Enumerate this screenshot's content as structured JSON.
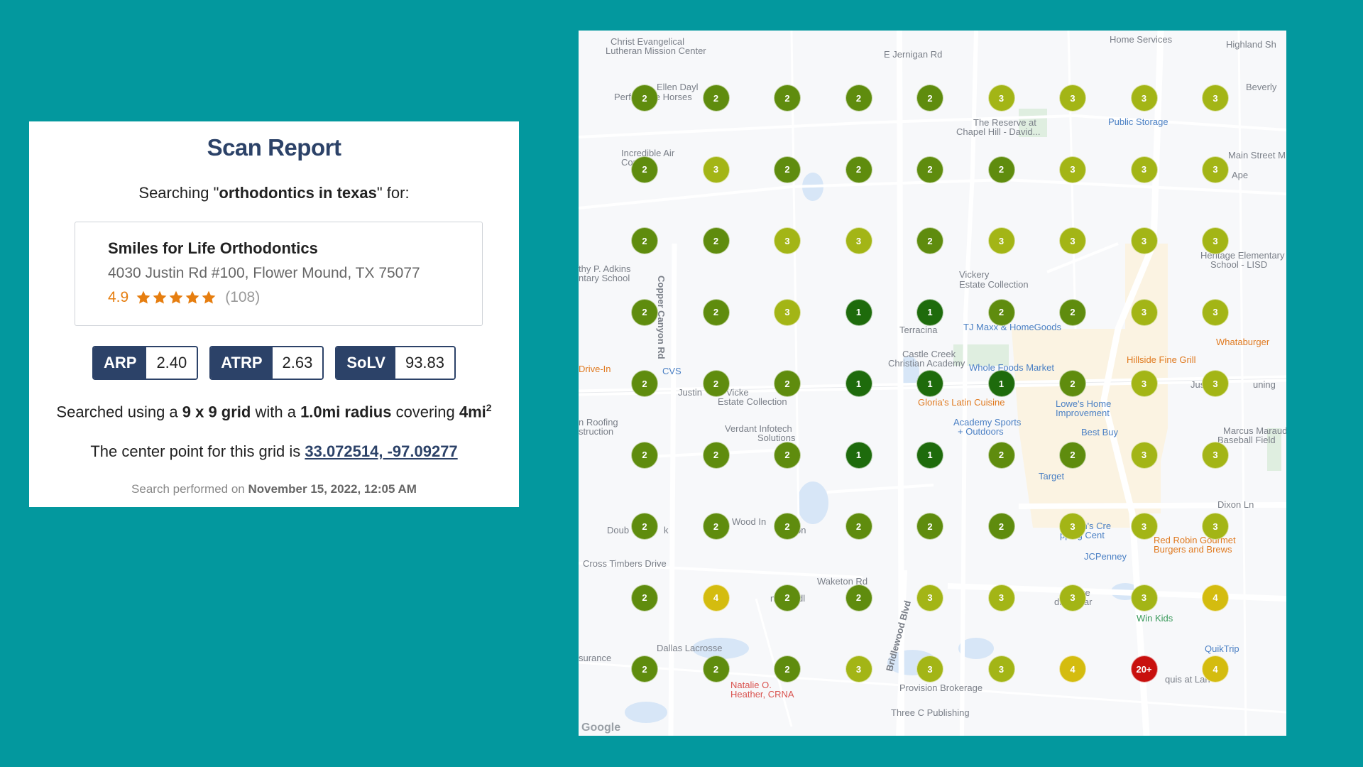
{
  "report": {
    "title": "Scan Report",
    "searching_prefix": "Searching \"",
    "query": "orthodontics in texas",
    "searching_suffix": "\" for:",
    "business": {
      "name": "Smiles for Life Orthodontics",
      "address": "4030 Justin Rd #100, Flower Mound, TX 75077",
      "rating": "4.9",
      "stars": 5,
      "review_count": "(108)"
    },
    "metrics": [
      {
        "label": "ARP",
        "value": "2.40"
      },
      {
        "label": "ATRP",
        "value": "2.63"
      },
      {
        "label": "SoLV",
        "value": "93.83"
      }
    ],
    "grid_text": {
      "p1": "Searched using a ",
      "grid": "9 x 9 grid",
      "p2": " with a ",
      "radius": "1.0mi radius",
      "p3": " covering ",
      "area": "4mi",
      "area_sup": "2"
    },
    "center_text": {
      "prefix": "The center point for this grid is ",
      "coords": "33.072514, -97.09277"
    },
    "performed": {
      "prefix": "Search performed on ",
      "date": "November 15, 2022, 12:05 AM"
    }
  },
  "map": {
    "rank_colors": {
      "1": "#1e6b0c",
      "2": "#5f8c0e",
      "3": "#a3b516",
      "4": "#d4bc0f",
      "20+": "#c8100e"
    },
    "grid": [
      [
        "2",
        "2",
        "2",
        "2",
        "2",
        "3",
        "3",
        "3",
        "3"
      ],
      [
        "2",
        "3",
        "2",
        "2",
        "2",
        "2",
        "3",
        "3",
        "3"
      ],
      [
        "2",
        "2",
        "3",
        "3",
        "2",
        "3",
        "3",
        "3",
        "3"
      ],
      [
        "2",
        "2",
        "3",
        "1",
        "1",
        "2",
        "2",
        "3",
        "3"
      ],
      [
        "2",
        "2",
        "2",
        "1",
        "1",
        "1",
        "2",
        "3",
        "3"
      ],
      [
        "2",
        "2",
        "2",
        "1",
        "1",
        "2",
        "2",
        "3",
        "3"
      ],
      [
        "2",
        "2",
        "2",
        "2",
        "2",
        "2",
        "3",
        "3",
        "3"
      ],
      [
        "2",
        "4",
        "2",
        "2",
        "3",
        "3",
        "3",
        "3",
        "4"
      ],
      [
        "2",
        "2",
        "2",
        "3",
        "3",
        "3",
        "4",
        "20+",
        "4"
      ]
    ],
    "labels": [
      {
        "text": "Christ Evangelical",
        "cls": ""
      },
      {
        "text": "Lutheran Mission Center",
        "cls": ""
      },
      {
        "text": "Home Services",
        "cls": ""
      },
      {
        "text": "Highland Sh",
        "cls": ""
      },
      {
        "text": "E Jernigan Rd",
        "cls": ""
      },
      {
        "text": "Ellen Dayl",
        "cls": ""
      },
      {
        "text": "Perf",
        "cls": ""
      },
      {
        "text": "nce Horses",
        "cls": ""
      },
      {
        "text": "Beverly",
        "cls": ""
      },
      {
        "text": "The Reserve at",
        "cls": ""
      },
      {
        "text": "Chapel Hill - David...",
        "cls": ""
      },
      {
        "text": "Public Storage",
        "cls": "place"
      },
      {
        "text": "Incredible Air",
        "cls": ""
      },
      {
        "text": "Conditi",
        "cls": ""
      },
      {
        "text": "Main Street M",
        "cls": ""
      },
      {
        "text": "Ape",
        "cls": ""
      },
      {
        "text": "Heritage Elementary",
        "cls": ""
      },
      {
        "text": "School - LISD",
        "cls": ""
      },
      {
        "text": "thy P. Adkins",
        "cls": ""
      },
      {
        "text": "ntary School",
        "cls": ""
      },
      {
        "text": "Vickery",
        "cls": ""
      },
      {
        "text": "Estate Collection",
        "cls": ""
      },
      {
        "text": "Copper Canyon Rd",
        "cls": ""
      },
      {
        "text": "Terracina",
        "cls": ""
      },
      {
        "text": "TJ Maxx & HomeGoods",
        "cls": "place"
      },
      {
        "text": "Whataburger",
        "cls": "food"
      },
      {
        "text": "Castle Creek",
        "cls": ""
      },
      {
        "text": "Christian Academy",
        "cls": ""
      },
      {
        "text": "Hillside Fine Grill",
        "cls": "food"
      },
      {
        "text": "Whole Foods Market",
        "cls": "place"
      },
      {
        "text": "Drive-In",
        "cls": "food"
      },
      {
        "text": "CVS",
        "cls": "place"
      },
      {
        "text": "Justin",
        "cls": ""
      },
      {
        "text": "Vicke",
        "cls": ""
      },
      {
        "text": "Estate Collection",
        "cls": ""
      },
      {
        "text": "Gloria's Latin Cuisine",
        "cls": "food"
      },
      {
        "text": "Lowe's Home",
        "cls": "place"
      },
      {
        "text": "Improvement",
        "cls": "place"
      },
      {
        "text": "Justin R",
        "cls": ""
      },
      {
        "text": "uning",
        "cls": ""
      },
      {
        "text": "n Roofing",
        "cls": ""
      },
      {
        "text": "struction",
        "cls": ""
      },
      {
        "text": "Verdant Infotech",
        "cls": ""
      },
      {
        "text": "Solutions",
        "cls": ""
      },
      {
        "text": "Academy Sports",
        "cls": "place"
      },
      {
        "text": "+ Outdoors",
        "cls": "place"
      },
      {
        "text": "Best Buy",
        "cls": "place"
      },
      {
        "text": "Marcus Marauder",
        "cls": ""
      },
      {
        "text": "Baseball Field",
        "cls": ""
      },
      {
        "text": "Target",
        "cls": "place"
      },
      {
        "text": "Dixon Ln",
        "cls": ""
      },
      {
        "text": "Doub",
        "cls": ""
      },
      {
        "text": "k",
        "cls": ""
      },
      {
        "text": "Wood In",
        "cls": ""
      },
      {
        "text": "on",
        "cls": ""
      },
      {
        "text": "tson's Cre",
        "cls": "place"
      },
      {
        "text": "pping Cent",
        "cls": "place"
      },
      {
        "text": "Red Robin Gourmet",
        "cls": "food"
      },
      {
        "text": "Burgers and Brews",
        "cls": "food"
      },
      {
        "text": "JCPenney",
        "cls": "place"
      },
      {
        "text": "Cross Timbers Drive",
        "cls": ""
      },
      {
        "text": "Waketon Rd",
        "cls": ""
      },
      {
        "text": "ng Middl",
        "cls": ""
      },
      {
        "text": "Village",
        "cls": ""
      },
      {
        "text": "ers at",
        "cls": ""
      },
      {
        "text": "dford Par",
        "cls": ""
      },
      {
        "text": "nnar",
        "cls": ""
      },
      {
        "text": "Win Kids",
        "cls": "green"
      },
      {
        "text": "QuikTrip",
        "cls": "place"
      },
      {
        "text": "Dallas Lacrosse",
        "cls": ""
      },
      {
        "text": "surance",
        "cls": ""
      },
      {
        "text": "Natalie O.",
        "cls": "red"
      },
      {
        "text": "Heather, CRNA",
        "cls": "red"
      },
      {
        "text": "Bridlewood Blvd",
        "cls": ""
      },
      {
        "text": "Provision Brokerage",
        "cls": ""
      },
      {
        "text": "quis at Lan",
        "cls": ""
      },
      {
        "text": "Three C Publishing",
        "cls": ""
      }
    ],
    "google": "Google"
  }
}
